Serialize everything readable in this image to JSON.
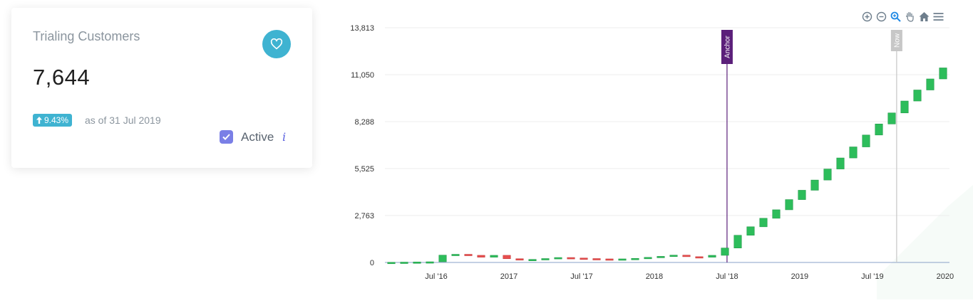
{
  "card": {
    "title": "Trialing Customers",
    "value": "7,644",
    "change": "9.43%",
    "as_of": "as of 31 Jul 2019",
    "active_label": "Active",
    "info_glyph": "i",
    "accent_color": "#3fb3d1",
    "check_color": "#7a7fe6"
  },
  "toolbar": {
    "icons": [
      "zoom-in-icon",
      "zoom-out-icon",
      "magnifier-icon",
      "pan-hand-icon",
      "home-icon",
      "menu-icon"
    ]
  },
  "chart_data": {
    "type": "candlestick",
    "y_ticks": [
      "13,813",
      "11,050",
      "8,288",
      "5,525",
      "2,763",
      "0"
    ],
    "ylim": [
      0,
      13813
    ],
    "x_ticks": [
      "Jul '16",
      "2017",
      "Jul '17",
      "2018",
      "Jul '18",
      "2019",
      "Jul '19",
      "2020"
    ],
    "grid": true,
    "annotations": [
      {
        "label": "Anchor",
        "date": "Jul '18",
        "color": "#5b1f7a"
      },
      {
        "label": "Now",
        "date": "Sep '19",
        "color": "#c7c7c7"
      }
    ],
    "up_color": "#2dbd5b",
    "down_color": "#e84f4f",
    "candles": [
      {
        "open": 0,
        "close": 10,
        "up": true
      },
      {
        "open": 10,
        "close": 20,
        "up": true
      },
      {
        "open": 20,
        "close": 30,
        "up": true
      },
      {
        "open": 30,
        "close": 40,
        "up": true
      },
      {
        "open": 40,
        "close": 430,
        "up": true
      },
      {
        "open": 430,
        "close": 480,
        "up": true
      },
      {
        "open": 480,
        "close": 420,
        "up": false
      },
      {
        "open": 420,
        "close": 310,
        "up": false
      },
      {
        "open": 310,
        "close": 420,
        "up": true
      },
      {
        "open": 420,
        "close": 220,
        "up": false
      },
      {
        "open": 220,
        "close": 140,
        "up": false
      },
      {
        "open": 140,
        "close": 180,
        "up": true
      },
      {
        "open": 180,
        "close": 230,
        "up": true
      },
      {
        "open": 230,
        "close": 290,
        "up": true
      },
      {
        "open": 290,
        "close": 260,
        "up": false
      },
      {
        "open": 260,
        "close": 230,
        "up": false
      },
      {
        "open": 230,
        "close": 210,
        "up": false
      },
      {
        "open": 210,
        "close": 190,
        "up": false
      },
      {
        "open": 190,
        "close": 210,
        "up": true
      },
      {
        "open": 210,
        "close": 240,
        "up": true
      },
      {
        "open": 240,
        "close": 300,
        "up": true
      },
      {
        "open": 300,
        "close": 360,
        "up": true
      },
      {
        "open": 360,
        "close": 430,
        "up": true
      },
      {
        "open": 430,
        "close": 340,
        "up": false
      },
      {
        "open": 340,
        "close": 310,
        "up": false
      },
      {
        "open": 310,
        "close": 420,
        "up": true
      },
      {
        "open": 420,
        "close": 850,
        "up": true
      },
      {
        "open": 850,
        "close": 1600,
        "up": true
      },
      {
        "open": 1600,
        "close": 2100,
        "up": true
      },
      {
        "open": 2100,
        "close": 2600,
        "up": true
      },
      {
        "open": 2600,
        "close": 3100,
        "up": true
      },
      {
        "open": 3100,
        "close": 3700,
        "up": true
      },
      {
        "open": 3700,
        "close": 4250,
        "up": true
      },
      {
        "open": 4250,
        "close": 4850,
        "up": true
      },
      {
        "open": 4850,
        "close": 5500,
        "up": true
      },
      {
        "open": 5500,
        "close": 6150,
        "up": true
      },
      {
        "open": 6150,
        "close": 6800,
        "up": true
      },
      {
        "open": 6800,
        "close": 7500,
        "up": true
      },
      {
        "open": 7500,
        "close": 8150,
        "up": true
      },
      {
        "open": 8150,
        "close": 8800,
        "up": true
      },
      {
        "open": 8800,
        "close": 9500,
        "up": true
      },
      {
        "open": 9500,
        "close": 10150,
        "up": true
      },
      {
        "open": 10150,
        "close": 10800,
        "up": true
      },
      {
        "open": 10800,
        "close": 11450,
        "up": true
      }
    ]
  }
}
